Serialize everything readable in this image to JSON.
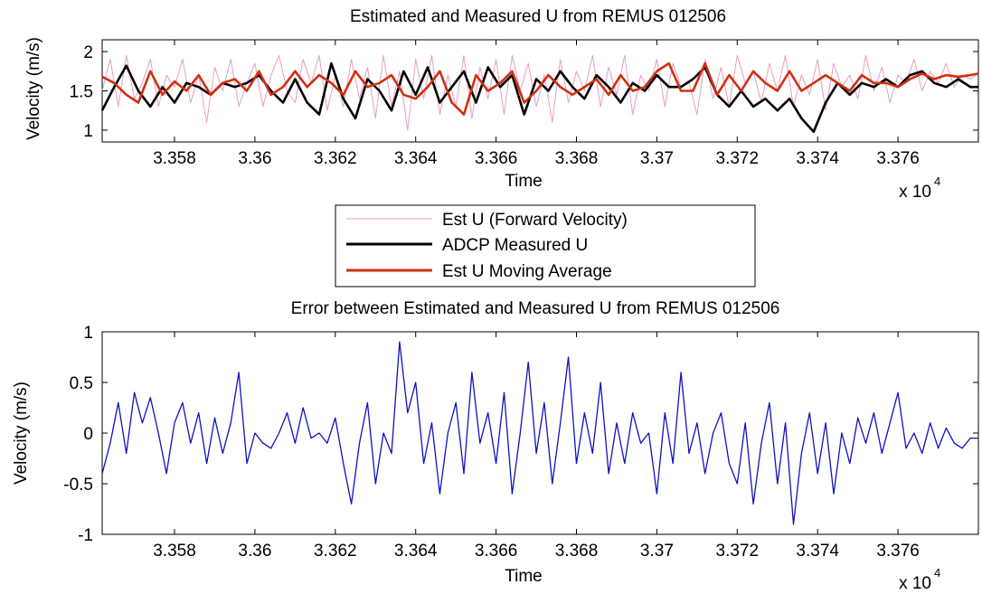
{
  "chart_data": [
    {
      "type": "line",
      "title": "Estimated and Measured U from REMUS 012506",
      "xlabel": "Time",
      "ylabel": "Velocity (m/s)",
      "xlim": [
        33562,
        33780
      ],
      "ylim": [
        0.85,
        2.15
      ],
      "xticks": [
        33580,
        33600,
        33620,
        33640,
        33660,
        33680,
        33700,
        33720,
        33740,
        33760
      ],
      "xtick_labels": [
        "3.358",
        "3.36",
        "3.362",
        "3.364",
        "3.366",
        "3.368",
        "3.37",
        "3.372",
        "3.374",
        "3.376"
      ],
      "yticks": [
        1,
        1.5,
        2
      ],
      "ytick_labels": [
        "1",
        "1.5",
        "2"
      ],
      "x_multiplier_base": "x 10",
      "x_multiplier_exp": "4",
      "series": [
        {
          "name": "Est U (Forward Velocity)",
          "color": "#e89bc6",
          "x": [
            33562,
            33564,
            33566,
            33568,
            33570,
            33572,
            33574,
            33576,
            33578,
            33580,
            33582,
            33584,
            33586,
            33588,
            33590,
            33592,
            33594,
            33596,
            33598,
            33600,
            33602,
            33604,
            33606,
            33608,
            33610,
            33612,
            33614,
            33616,
            33618,
            33620,
            33622,
            33624,
            33626,
            33628,
            33630,
            33632,
            33634,
            33636,
            33638,
            33640,
            33642,
            33644,
            33646,
            33648,
            33650,
            33652,
            33654,
            33656,
            33658,
            33660,
            33662,
            33664,
            33666,
            33668,
            33670,
            33672,
            33674,
            33676,
            33678,
            33680,
            33682,
            33684,
            33686,
            33688,
            33690,
            33692,
            33694,
            33696,
            33698,
            33700,
            33702,
            33704,
            33706,
            33708,
            33710,
            33712,
            33714,
            33716,
            33718,
            33720,
            33722,
            33724,
            33726,
            33728,
            33730,
            33732,
            33734,
            33736,
            33738,
            33740,
            33742,
            33744,
            33746,
            33748,
            33750,
            33752,
            33754,
            33756,
            33758,
            33760,
            33762,
            33764,
            33766,
            33768,
            33770,
            33772,
            33774,
            33776,
            33778,
            33780
          ],
          "y": [
            1.5,
            1.9,
            1.3,
            1.95,
            1.4,
            1.6,
            1.9,
            1.3,
            1.7,
            1.55,
            1.9,
            1.35,
            1.7,
            1.1,
            1.8,
            1.5,
            1.9,
            1.3,
            1.6,
            1.85,
            1.3,
            1.7,
            1.95,
            1.5,
            1.35,
            1.9,
            1.6,
            1.95,
            1.25,
            1.7,
            1.3,
            1.9,
            1.4,
            1.8,
            1.15,
            1.95,
            1.3,
            1.75,
            1.0,
            1.9,
            1.4,
            1.95,
            1.2,
            1.7,
            1.3,
            1.95,
            1.15,
            1.8,
            1.4,
            1.9,
            1.2,
            1.95,
            1.5,
            1.85,
            1.3,
            1.7,
            1.1,
            1.9,
            1.35,
            1.75,
            1.5,
            1.95,
            1.3,
            1.8,
            1.45,
            1.95,
            1.2,
            1.7,
            1.5,
            1.9,
            1.3,
            1.85,
            1.55,
            1.6,
            1.2,
            1.9,
            1.4,
            1.8,
            1.3,
            1.95,
            1.6,
            1.75,
            1.35,
            1.85,
            1.5,
            1.95,
            1.3,
            1.7,
            1.45,
            1.9,
            1.25,
            1.85,
            1.55,
            1.7,
            1.4,
            1.95,
            1.5,
            1.8,
            1.35,
            1.7,
            1.6,
            1.9,
            1.5,
            1.75,
            1.6,
            1.85,
            1.55,
            1.7,
            1.65,
            1.72
          ]
        },
        {
          "name": "ADCP Measured U",
          "color": "#000000",
          "x": [
            33562,
            33565,
            33568,
            33571,
            33574,
            33577,
            33580,
            33583,
            33586,
            33589,
            33592,
            33595,
            33598,
            33601,
            33604,
            33607,
            33610,
            33613,
            33616,
            33619,
            33622,
            33625,
            33628,
            33631,
            33634,
            33637,
            33640,
            33643,
            33646,
            33649,
            33652,
            33655,
            33658,
            33661,
            33664,
            33667,
            33670,
            33673,
            33676,
            33679,
            33682,
            33685,
            33688,
            33691,
            33694,
            33697,
            33700,
            33703,
            33706,
            33709,
            33712,
            33715,
            33718,
            33721,
            33724,
            33727,
            33730,
            33733,
            33736,
            33739,
            33742,
            33745,
            33748,
            33751,
            33754,
            33757,
            33760,
            33763,
            33766,
            33769,
            33772,
            33775,
            33778,
            33780
          ],
          "y": [
            1.25,
            1.55,
            1.82,
            1.5,
            1.3,
            1.55,
            1.35,
            1.6,
            1.55,
            1.45,
            1.6,
            1.55,
            1.6,
            1.7,
            1.5,
            1.35,
            1.65,
            1.35,
            1.2,
            1.85,
            1.4,
            1.15,
            1.65,
            1.5,
            1.25,
            1.75,
            1.45,
            1.8,
            1.35,
            1.55,
            1.75,
            1.35,
            1.8,
            1.55,
            1.7,
            1.2,
            1.65,
            1.5,
            1.75,
            1.55,
            1.4,
            1.7,
            1.55,
            1.35,
            1.6,
            1.5,
            1.7,
            1.55,
            1.55,
            1.65,
            1.8,
            1.45,
            1.3,
            1.5,
            1.3,
            1.4,
            1.25,
            1.4,
            1.15,
            0.98,
            1.35,
            1.6,
            1.45,
            1.6,
            1.55,
            1.65,
            1.55,
            1.7,
            1.75,
            1.6,
            1.55,
            1.65,
            1.55,
            1.55
          ]
        },
        {
          "name": "Est U Moving Average",
          "color": "#d03010",
          "x": [
            33562,
            33565,
            33568,
            33571,
            33574,
            33577,
            33580,
            33583,
            33586,
            33589,
            33592,
            33595,
            33598,
            33601,
            33604,
            33607,
            33610,
            33613,
            33616,
            33619,
            33622,
            33625,
            33628,
            33631,
            33634,
            33637,
            33640,
            33643,
            33646,
            33649,
            33652,
            33655,
            33658,
            33661,
            33664,
            33667,
            33670,
            33673,
            33676,
            33679,
            33682,
            33685,
            33688,
            33691,
            33694,
            33697,
            33700,
            33703,
            33706,
            33709,
            33712,
            33715,
            33718,
            33721,
            33724,
            33727,
            33730,
            33733,
            33736,
            33739,
            33742,
            33745,
            33748,
            33751,
            33754,
            33757,
            33760,
            33763,
            33766,
            33769,
            33772,
            33775,
            33778,
            33780
          ],
          "y": [
            1.68,
            1.6,
            1.45,
            1.35,
            1.75,
            1.45,
            1.62,
            1.5,
            1.7,
            1.45,
            1.6,
            1.65,
            1.5,
            1.75,
            1.45,
            1.55,
            1.75,
            1.55,
            1.7,
            1.6,
            1.45,
            1.75,
            1.55,
            1.6,
            1.7,
            1.45,
            1.4,
            1.55,
            1.75,
            1.35,
            1.2,
            1.7,
            1.5,
            1.6,
            1.75,
            1.35,
            1.5,
            1.7,
            1.55,
            1.45,
            1.55,
            1.65,
            1.45,
            1.7,
            1.5,
            1.55,
            1.75,
            1.85,
            1.5,
            1.5,
            1.85,
            1.45,
            1.7,
            1.5,
            1.75,
            1.6,
            1.5,
            1.75,
            1.5,
            1.6,
            1.7,
            1.6,
            1.5,
            1.7,
            1.6,
            1.6,
            1.55,
            1.65,
            1.72,
            1.65,
            1.7,
            1.68,
            1.7,
            1.72
          ]
        }
      ],
      "legend": "below",
      "grid": false
    },
    {
      "type": "line",
      "title": "Error between Estimated and Measured U from REMUS 012506",
      "xlabel": "Time",
      "ylabel": "Velocity (m/s)",
      "xlim": [
        33562,
        33780
      ],
      "ylim": [
        -1,
        1
      ],
      "xticks": [
        33580,
        33600,
        33620,
        33640,
        33660,
        33680,
        33700,
        33720,
        33740,
        33760
      ],
      "xtick_labels": [
        "3.358",
        "3.36",
        "3.362",
        "3.364",
        "3.366",
        "3.368",
        "3.37",
        "3.372",
        "3.374",
        "3.376"
      ],
      "yticks": [
        -1,
        -0.5,
        0,
        0.5,
        1
      ],
      "ytick_labels": [
        "-1",
        "-0.5",
        "0",
        "0.5",
        "1"
      ],
      "x_multiplier_base": "x 10",
      "x_multiplier_exp": "4",
      "series": [
        {
          "name": "",
          "color": "#1010c0",
          "x": [
            33562,
            33564,
            33566,
            33568,
            33570,
            33572,
            33574,
            33576,
            33578,
            33580,
            33582,
            33584,
            33586,
            33588,
            33590,
            33592,
            33594,
            33596,
            33598,
            33600,
            33602,
            33604,
            33606,
            33608,
            33610,
            33612,
            33614,
            33616,
            33618,
            33620,
            33622,
            33624,
            33626,
            33628,
            33630,
            33632,
            33634,
            33636,
            33638,
            33640,
            33642,
            33644,
            33646,
            33648,
            33650,
            33652,
            33654,
            33656,
            33658,
            33660,
            33662,
            33664,
            33666,
            33668,
            33670,
            33672,
            33674,
            33676,
            33678,
            33680,
            33682,
            33684,
            33686,
            33688,
            33690,
            33692,
            33694,
            33696,
            33698,
            33700,
            33702,
            33704,
            33706,
            33708,
            33710,
            33712,
            33714,
            33716,
            33718,
            33720,
            33722,
            33724,
            33726,
            33728,
            33730,
            33732,
            33734,
            33736,
            33738,
            33740,
            33742,
            33744,
            33746,
            33748,
            33750,
            33752,
            33754,
            33756,
            33758,
            33760,
            33762,
            33764,
            33766,
            33768,
            33770,
            33772,
            33774,
            33776,
            33778,
            33780
          ],
          "y": [
            -0.4,
            -0.1,
            0.3,
            -0.2,
            0.4,
            0.1,
            0.35,
            0.0,
            -0.4,
            0.1,
            0.3,
            -0.1,
            0.2,
            -0.3,
            0.15,
            -0.2,
            0.1,
            0.6,
            -0.3,
            0.0,
            -0.1,
            -0.15,
            0.0,
            0.2,
            -0.1,
            0.25,
            -0.05,
            0.0,
            -0.1,
            0.15,
            -0.3,
            -0.7,
            -0.1,
            0.3,
            -0.5,
            0.0,
            -0.2,
            0.9,
            0.2,
            0.5,
            -0.3,
            0.1,
            -0.6,
            0.0,
            0.3,
            -0.4,
            0.6,
            -0.1,
            0.2,
            -0.3,
            0.4,
            -0.6,
            0.0,
            0.7,
            -0.2,
            0.3,
            -0.5,
            0.1,
            0.75,
            -0.3,
            0.2,
            -0.2,
            0.5,
            -0.4,
            0.1,
            -0.3,
            0.2,
            -0.1,
            0.0,
            -0.6,
            0.2,
            -0.3,
            0.6,
            -0.2,
            0.1,
            -0.4,
            0.0,
            0.2,
            -0.3,
            -0.5,
            0.1,
            -0.7,
            -0.1,
            0.3,
            -0.5,
            0.1,
            -0.9,
            -0.2,
            0.2,
            -0.4,
            0.1,
            -0.6,
            0.0,
            -0.3,
            0.15,
            -0.1,
            0.2,
            -0.2,
            0.1,
            0.4,
            -0.15,
            0.0,
            -0.2,
            0.1,
            -0.15,
            0.05,
            -0.1,
            -0.15,
            -0.05,
            -0.05
          ]
        }
      ],
      "legend": "none",
      "grid": false
    }
  ]
}
